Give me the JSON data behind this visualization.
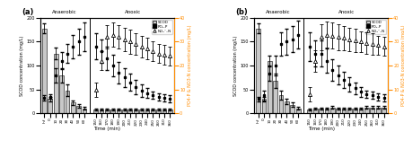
{
  "anaerobic_labels": [
    "Inf",
    "0",
    "10",
    "20",
    "30",
    "40",
    "50",
    "60"
  ],
  "anoxic_labels": [
    "150",
    "160",
    "170",
    "180",
    "190",
    "200",
    "210",
    "220",
    "230",
    "240",
    "250",
    "260",
    "310",
    "360"
  ],
  "n_anaerobic": 8,
  "n_anoxic": 14,
  "a_scod": [
    178,
    30,
    125,
    80,
    48,
    22,
    16,
    10
  ],
  "a_scod_err": [
    10,
    5,
    12,
    15,
    12,
    5,
    4,
    3
  ],
  "a_scod_anoxic": [
    8,
    8,
    8,
    8,
    8,
    8,
    8,
    8,
    8,
    8,
    8,
    8,
    8,
    8
  ],
  "a_scod_anoxic_err": [
    2,
    2,
    2,
    2,
    2,
    2,
    2,
    2,
    2,
    2,
    2,
    2,
    2,
    2
  ],
  "a_po4_anaerobic": [
    6.5,
    7.0,
    16.0,
    22.0,
    25.0,
    28.0,
    30.0,
    32.0
  ],
  "a_po4_anaerobic_err": [
    1.0,
    1.0,
    3.0,
    3.5,
    4.0,
    5.0,
    5.5,
    6.0
  ],
  "a_po4_anoxic": [
    28.0,
    26.0,
    23.0,
    20.0,
    17.0,
    15.0,
    13.0,
    11.0,
    9.5,
    8.5,
    7.5,
    7.0,
    6.5,
    6.0
  ],
  "a_po4_anoxic_err": [
    5.5,
    5.0,
    5.0,
    4.5,
    4.5,
    4.0,
    3.5,
    3.0,
    2.5,
    2.0,
    1.5,
    1.5,
    1.5,
    1.5
  ],
  "a_no3_anoxic": [
    10.0,
    22.0,
    32.0,
    33.0,
    32.0,
    31.0,
    30.0,
    29.0,
    28.0,
    27.0,
    26.0,
    25.0,
    24.5,
    24.0
  ],
  "a_no3_anoxic_err": [
    3.0,
    4.0,
    5.0,
    5.0,
    5.0,
    5.0,
    5.0,
    4.5,
    4.5,
    4.5,
    4.0,
    4.0,
    4.0,
    4.0
  ],
  "b_scod": [
    178,
    30,
    110,
    68,
    38,
    25,
    18,
    10
  ],
  "b_scod_err": [
    10,
    5,
    10,
    15,
    10,
    6,
    4,
    3
  ],
  "b_scod_anoxic": [
    8,
    10,
    10,
    10,
    12,
    10,
    10,
    10,
    10,
    10,
    12,
    12,
    12,
    12
  ],
  "b_scod_anoxic_err": [
    2,
    2,
    2,
    2,
    3,
    2,
    2,
    2,
    2,
    2,
    3,
    3,
    3,
    3
  ],
  "b_po4_anaerobic": [
    6.0,
    7.5,
    16.5,
    20.0,
    29.0,
    30.0,
    31.0,
    33.0
  ],
  "b_po4_anaerobic_err": [
    1.0,
    2.0,
    3.0,
    4.0,
    5.0,
    5.5,
    5.5,
    6.0
  ],
  "b_po4_anoxic": [
    28.0,
    25.0,
    25.0,
    22.0,
    18.0,
    16.0,
    14.0,
    12.0,
    10.5,
    9.0,
    8.0,
    7.5,
    7.0,
    6.5
  ],
  "b_po4_anoxic_err": [
    6.0,
    5.5,
    5.5,
    5.0,
    4.5,
    4.0,
    3.5,
    3.0,
    2.5,
    2.0,
    1.5,
    1.5,
    1.5,
    1.5
  ],
  "b_no3_anoxic": [
    8.0,
    22.0,
    32.0,
    33.0,
    32.5,
    32.0,
    31.5,
    31.0,
    30.5,
    30.0,
    29.5,
    29.0,
    28.5,
    28.0
  ],
  "b_no3_anoxic_err": [
    3.0,
    4.5,
    5.5,
    5.5,
    5.5,
    5.5,
    5.0,
    5.0,
    5.0,
    4.5,
    4.5,
    4.5,
    4.0,
    4.0
  ],
  "scod_color": "#c8c8c8",
  "scod_edge_color": "#000000",
  "right_axis_color": "#FF8C00",
  "anaerobic_label": "Anaerobic",
  "anoxic_label": "Anoxic",
  "ylabel_left": "SCOD concentration (mg/L)",
  "ylabel_right": "PO4-P & NO3-N concentration (mg/L)",
  "xlabel": "Time (min)",
  "ylim_left": [
    0,
    200
  ],
  "ylim_right": [
    0,
    40
  ],
  "title_a": "(a)",
  "title_b": "(b)"
}
